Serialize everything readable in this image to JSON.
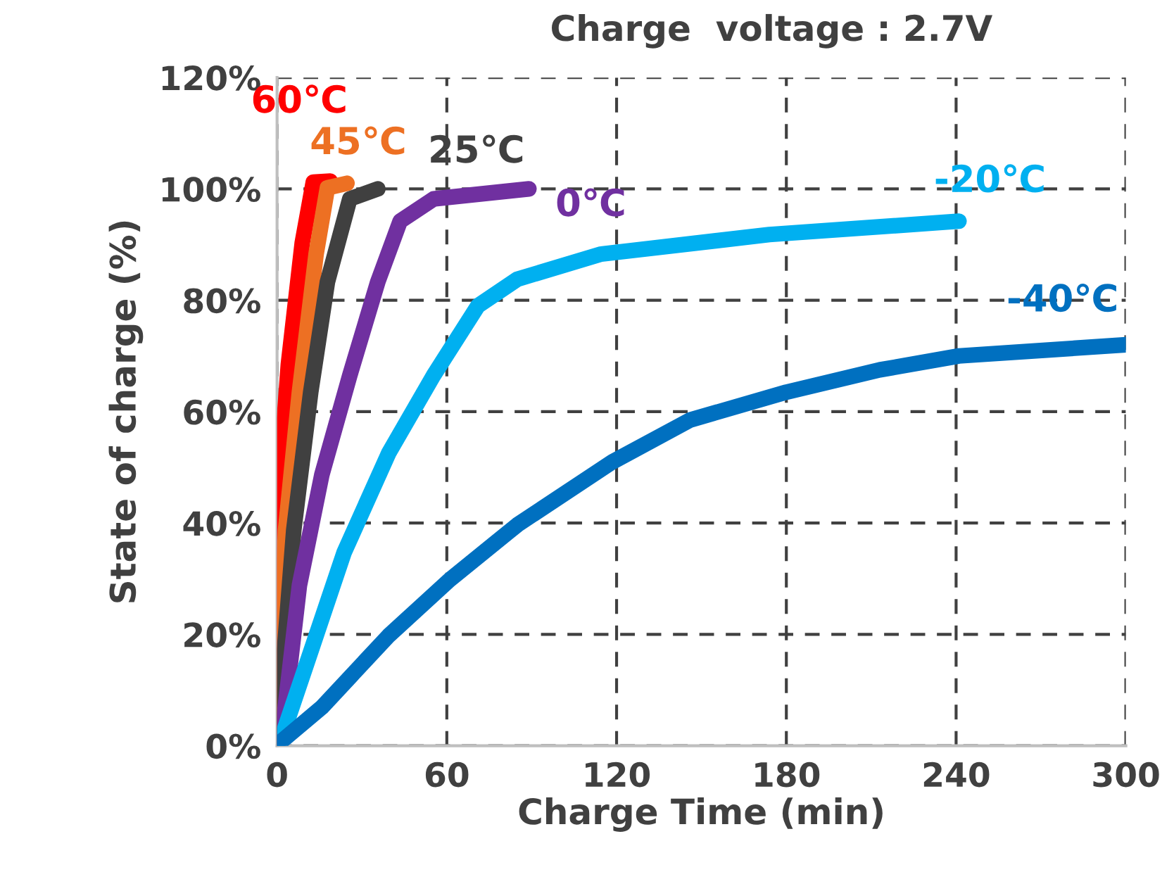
{
  "chart_data": {
    "type": "line",
    "title": "Charge  voltage : 2.7V",
    "xlabel": "Charge Time (min)",
    "ylabel": "State of charge (%)",
    "xlim": [
      0,
      300
    ],
    "xticks": [
      0,
      60,
      120,
      180,
      240,
      300
    ],
    "ylim": [
      0,
      120
    ],
    "yticks": [
      {
        "value": 0,
        "label": "0%"
      },
      {
        "value": 20,
        "label": "20%"
      },
      {
        "value": 40,
        "label": "40%"
      },
      {
        "value": 60,
        "label": "60%"
      },
      {
        "value": 80,
        "label": "80%"
      },
      {
        "value": 100,
        "label": "100%"
      },
      {
        "value": 120,
        "label": "120%"
      }
    ],
    "grid": true,
    "legend": false,
    "marker": "none",
    "line_style": "solid",
    "series": [
      {
        "name": "60℃",
        "color": "#ff0000",
        "x": [
          0,
          0.4,
          4,
          8.9,
          12.8,
          18.8
        ],
        "values": [
          0,
          43.6,
          68.5,
          90.3,
          101.2,
          101.4
        ]
      },
      {
        "name": "45℃",
        "color": "#ed7023",
        "x": [
          0,
          3,
          7.9,
          13.8,
          17.8,
          24.7
        ],
        "values": [
          0,
          38.7,
          63.5,
          88.3,
          100.2,
          101
        ]
      },
      {
        "name": "25℃",
        "color": "#404040",
        "x": [
          0,
          5.9,
          11.9,
          17.8,
          25.7,
          35.6
        ],
        "values": [
          0,
          38.7,
          63.5,
          83.3,
          98.2,
          100
        ]
      },
      {
        "name": "0℃",
        "color": "#7030a0",
        "x": [
          0,
          2,
          7.9,
          15.8,
          25.7,
          35.6,
          43.5,
          55.3,
          89
        ],
        "values": [
          0,
          3,
          28.8,
          48.6,
          66.5,
          83.3,
          94.2,
          98.2,
          100
        ]
      },
      {
        "name": "-20℃",
        "color": "#00b0f0",
        "x": [
          0,
          2,
          11.9,
          23.7,
          39.5,
          55.3,
          71,
          85,
          114.6,
          174,
          241
        ],
        "values": [
          0,
          2,
          16.9,
          34.7,
          52.6,
          66.5,
          79,
          83.8,
          88.3,
          91.8,
          94.2
        ]
      },
      {
        "name": "-40℃",
        "color": "#0070c0",
        "x": [
          0,
          2,
          15.8,
          39.5,
          61,
          85,
          118.6,
          146,
          180,
          213,
          241,
          300
        ],
        "values": [
          0,
          1,
          6.9,
          19.8,
          29.8,
          39.7,
          51,
          58.5,
          63.5,
          67.5,
          70,
          72
        ]
      }
    ]
  }
}
